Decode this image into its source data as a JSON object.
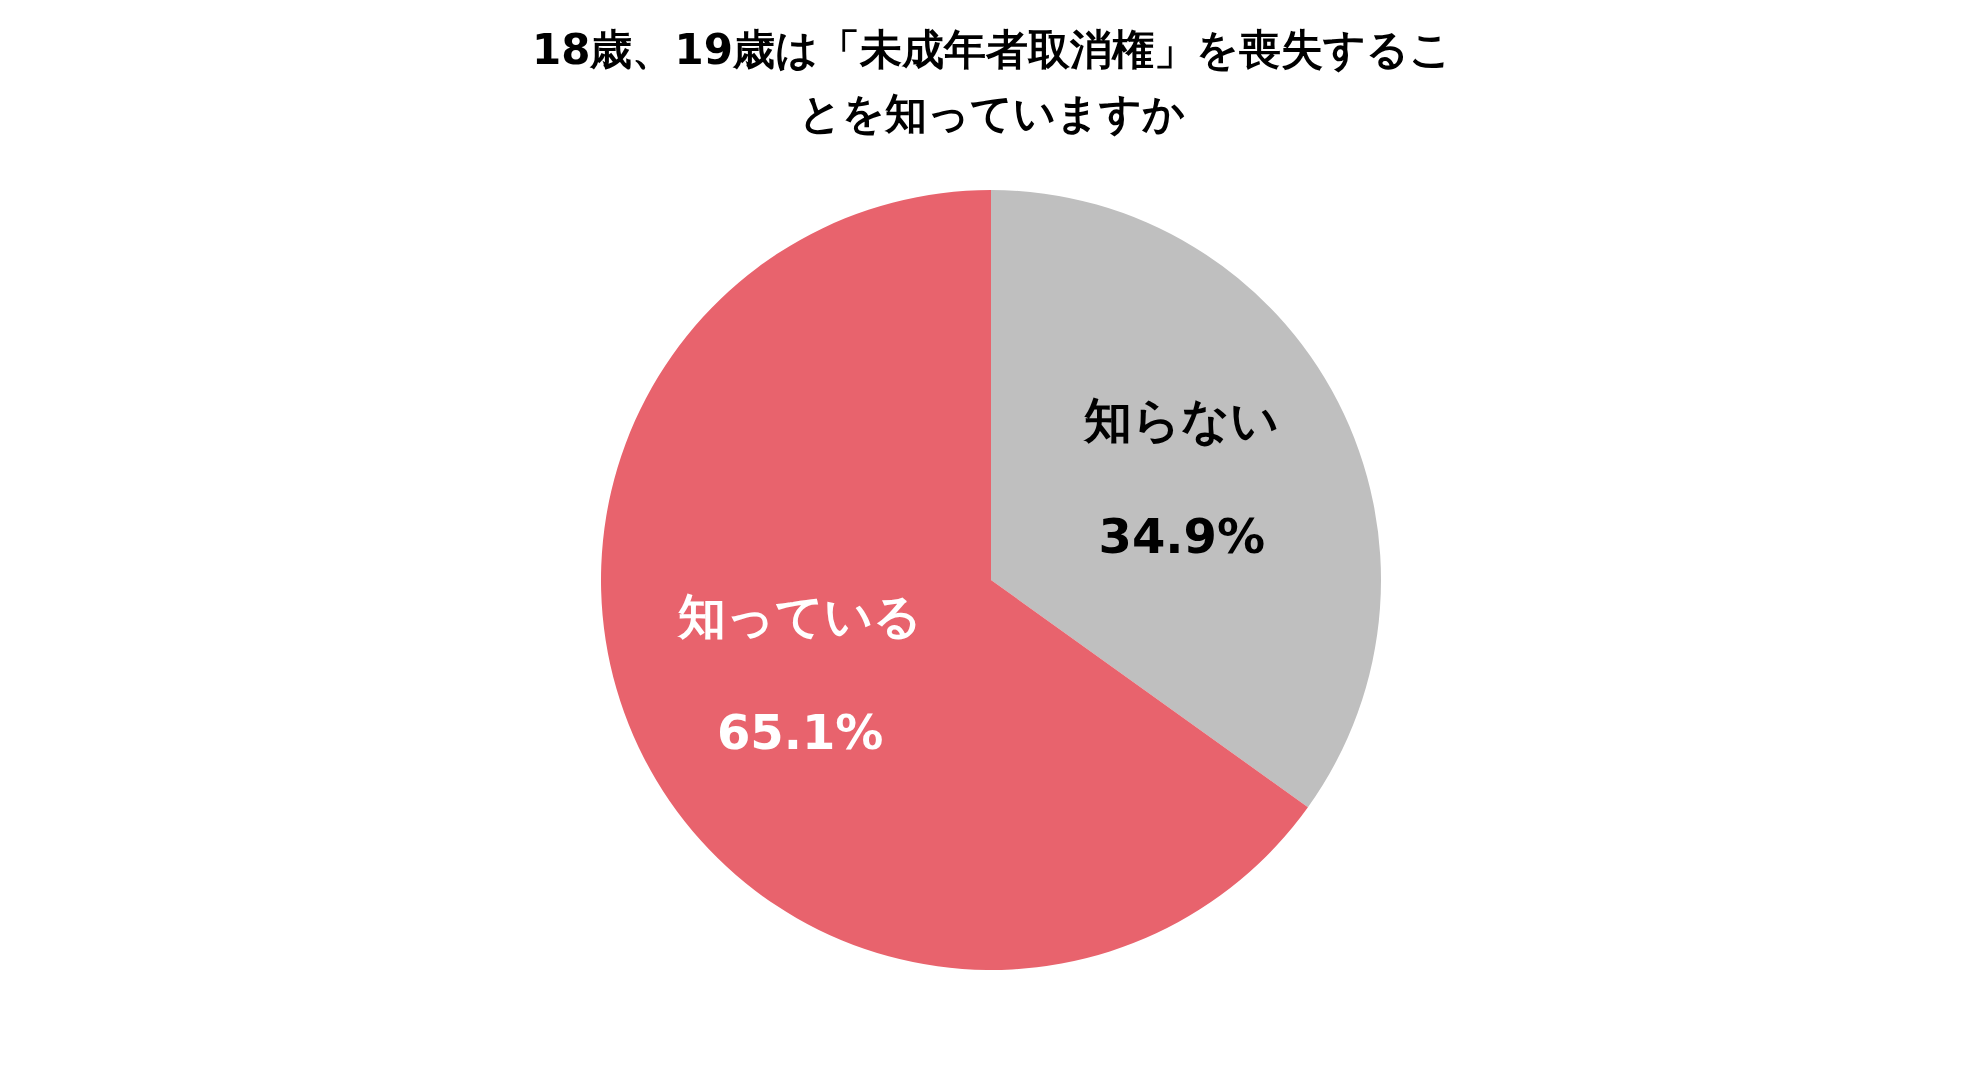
{
  "chart_data": {
    "type": "pie",
    "title": "18歳、19歳は「未成年者取消権」を喪失することを知っていますか",
    "categories": [
      "知らない",
      "知っている"
    ],
    "values": [
      34.9,
      65.1
    ],
    "value_labels": [
      "34.9%",
      "65.1%"
    ],
    "colors": [
      "#bfbfbf",
      "#e8636d"
    ]
  }
}
